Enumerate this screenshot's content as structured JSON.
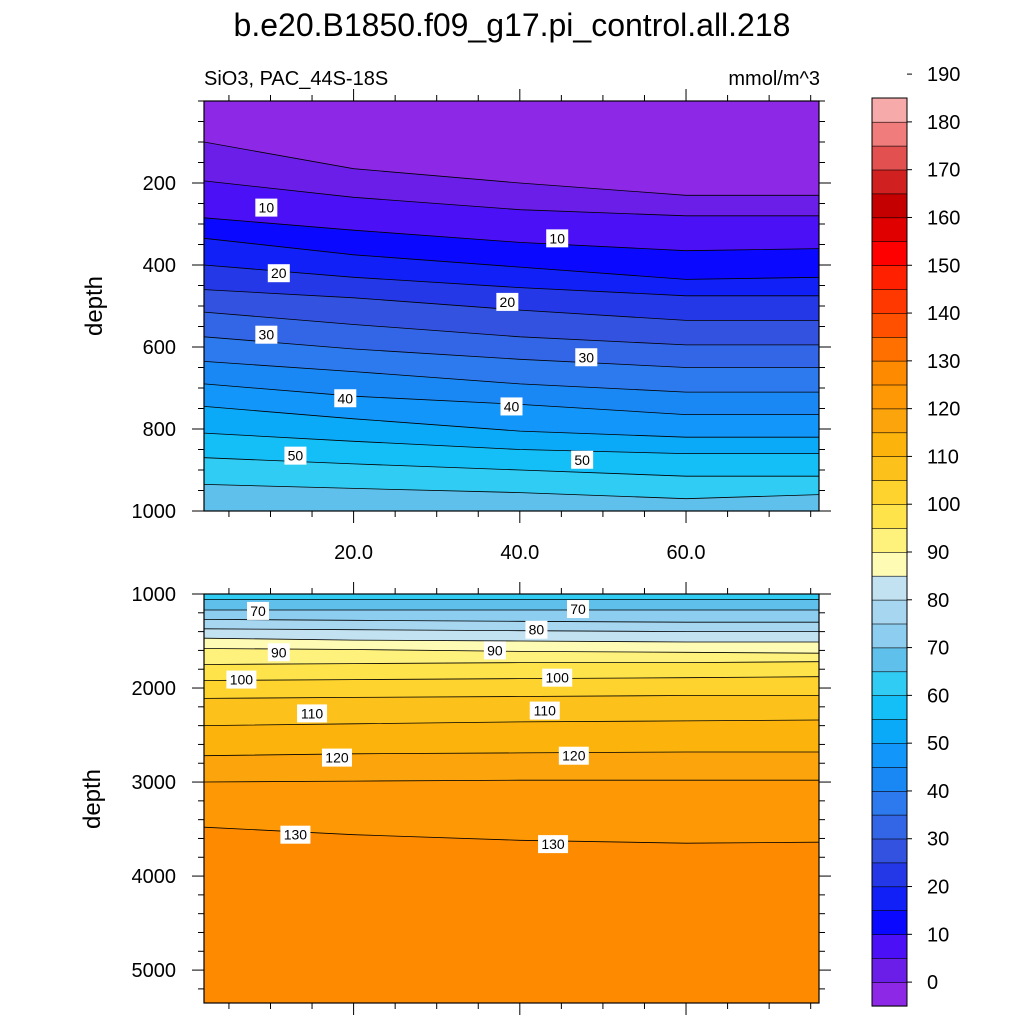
{
  "chart_data": {
    "type": "contour",
    "title": "b.e20.B1850.f09_g17.pi_control.all.218",
    "left_string": "SiO3, PAC_44S-18S",
    "right_string": "mmol/m^3",
    "ylabel": "depth",
    "xlabel": "",
    "xlim": [
      2,
      76
    ],
    "x_ticks": [
      20,
      40,
      60
    ],
    "x_tick_labels": [
      "20.0",
      "40.0",
      "60.0"
    ],
    "panels": [
      {
        "name": "upper",
        "ylim": [
          0,
          1000
        ],
        "y_ticks": [
          200,
          400,
          600,
          800,
          1000
        ],
        "y_tick_labels": [
          "200",
          "400",
          "600",
          "800",
          "1000"
        ],
        "x_samples": [
          2,
          20,
          40,
          60,
          76
        ],
        "levels": [
          {
            "value": 0,
            "depth": [
              100,
              165,
              200,
              230,
              230
            ]
          },
          {
            "value": 5,
            "depth": [
              195,
              235,
              265,
              280,
              280
            ]
          },
          {
            "value": 10,
            "depth": [
              285,
              315,
              345,
              365,
              360
            ]
          },
          {
            "value": 15,
            "depth": [
              335,
              375,
              405,
              435,
              430
            ]
          },
          {
            "value": 20,
            "depth": [
              400,
              430,
              455,
              475,
              475
            ]
          },
          {
            "value": 25,
            "depth": [
              460,
              480,
              510,
              535,
              535
            ]
          },
          {
            "value": 30,
            "depth": [
              515,
              545,
              575,
              595,
              595
            ]
          },
          {
            "value": 35,
            "depth": [
              575,
              605,
              630,
              650,
              650
            ]
          },
          {
            "value": 40,
            "depth": [
              635,
              660,
              690,
              710,
              710
            ]
          },
          {
            "value": 45,
            "depth": [
              690,
              720,
              740,
              765,
              765
            ]
          },
          {
            "value": 50,
            "depth": [
              745,
              775,
              805,
              820,
              820
            ]
          },
          {
            "value": 55,
            "depth": [
              810,
              830,
              850,
              860,
              860
            ]
          },
          {
            "value": 60,
            "depth": [
              870,
              885,
              900,
              915,
              915
            ]
          },
          {
            "value": 65,
            "depth": [
              935,
              945,
              955,
              970,
              960
            ]
          }
        ],
        "labels": [
          {
            "text": "10",
            "x": 9.5,
            "depth": 260
          },
          {
            "text": "10",
            "x": 44.5,
            "depth": 335
          },
          {
            "text": "20",
            "x": 11,
            "depth": 420
          },
          {
            "text": "20",
            "x": 38.5,
            "depth": 490
          },
          {
            "text": "30",
            "x": 9.5,
            "depth": 570
          },
          {
            "text": "30",
            "x": 48,
            "depth": 625
          },
          {
            "text": "40",
            "x": 19,
            "depth": 725
          },
          {
            "text": "40",
            "x": 39,
            "depth": 745
          },
          {
            "text": "50",
            "x": 13,
            "depth": 865
          },
          {
            "text": "50",
            "x": 47.5,
            "depth": 875
          }
        ]
      },
      {
        "name": "lower",
        "ylim": [
          1000,
          5350
        ],
        "y_ticks": [
          1000,
          2000,
          3000,
          4000,
          5000
        ],
        "y_tick_labels": [
          "1000",
          "2000",
          "3000",
          "4000",
          "5000"
        ],
        "x_samples": [
          2,
          20,
          40,
          60,
          76
        ],
        "levels": [
          {
            "value": 65,
            "depth": [
              1060,
              1060,
              1060,
              1060,
              1060
            ]
          },
          {
            "value": 70,
            "depth": [
              1170,
              1170,
              1170,
              1170,
              1170
            ]
          },
          {
            "value": 75,
            "depth": [
              1270,
              1280,
              1290,
              1300,
              1300
            ]
          },
          {
            "value": 80,
            "depth": [
              1370,
              1380,
              1390,
              1400,
              1400
            ]
          },
          {
            "value": 85,
            "depth": [
              1470,
              1490,
              1500,
              1510,
              1510
            ]
          },
          {
            "value": 90,
            "depth": [
              1580,
              1590,
              1610,
              1620,
              1630
            ]
          },
          {
            "value": 95,
            "depth": [
              1750,
              1740,
              1730,
              1730,
              1720
            ]
          },
          {
            "value": 100,
            "depth": [
              1920,
              1910,
              1900,
              1890,
              1880
            ]
          },
          {
            "value": 105,
            "depth": [
              2110,
              2100,
              2090,
              2080,
              2080
            ]
          },
          {
            "value": 110,
            "depth": [
              2400,
              2380,
              2360,
              2350,
              2340
            ]
          },
          {
            "value": 115,
            "depth": [
              2720,
              2700,
              2690,
              2680,
              2680
            ]
          },
          {
            "value": 120,
            "depth": [
              3000,
              2990,
              2980,
              2980,
              2980
            ]
          },
          {
            "value": 125,
            "depth": [
              3480,
              3560,
              3620,
              3650,
              3640
            ]
          }
        ],
        "labels": [
          {
            "text": "70",
            "x": 8.5,
            "depth": 1180
          },
          {
            "text": "70",
            "x": 47,
            "depth": 1160
          },
          {
            "text": "80",
            "x": 42,
            "depth": 1380
          },
          {
            "text": "90",
            "x": 11,
            "depth": 1620
          },
          {
            "text": "90",
            "x": 37,
            "depth": 1600
          },
          {
            "text": "100",
            "x": 6.5,
            "depth": 1910
          },
          {
            "text": "100",
            "x": 44.5,
            "depth": 1890
          },
          {
            "text": "110",
            "x": 15,
            "depth": 2270
          },
          {
            "text": "110",
            "x": 43,
            "depth": 2240
          },
          {
            "text": "120",
            "x": 18,
            "depth": 2740
          },
          {
            "text": "120",
            "x": 46.5,
            "depth": 2720
          },
          {
            "text": "130",
            "x": 13,
            "depth": 3560
          },
          {
            "text": "130",
            "x": 44,
            "depth": 3660
          }
        ]
      }
    ],
    "colorbar": {
      "labels": [
        "0",
        "10",
        "20",
        "30",
        "40",
        "50",
        "60",
        "70",
        "80",
        "90",
        "100",
        "110",
        "120",
        "130",
        "140",
        "150",
        "160",
        "170",
        "180",
        "190"
      ],
      "colors": [
        "#8c28e6",
        "#6a1ee8",
        "#4b10f6",
        "#0a08ff",
        "#1020f6",
        "#2438e8",
        "#3452e0",
        "#3366e6",
        "#2c7aee",
        "#1a88f4",
        "#1296fa",
        "#0aaaf8",
        "#14bef6",
        "#30ccf4",
        "#60c0ec",
        "#8ccdf0",
        "#a6d6f0",
        "#c2e2f2",
        "#fefbb4",
        "#fef17c",
        "#fee34a",
        "#fed32e",
        "#fdc11c",
        "#fcb40c",
        "#fca40c",
        "#fe9804",
        "#fe8a00",
        "#ff7000",
        "#ff5000",
        "#ff3800",
        "#ff2000",
        "#ff0000",
        "#e00000",
        "#c40000",
        "#d02020",
        "#e35050",
        "#f07c7c",
        "#f6aaaa"
      ]
    }
  }
}
